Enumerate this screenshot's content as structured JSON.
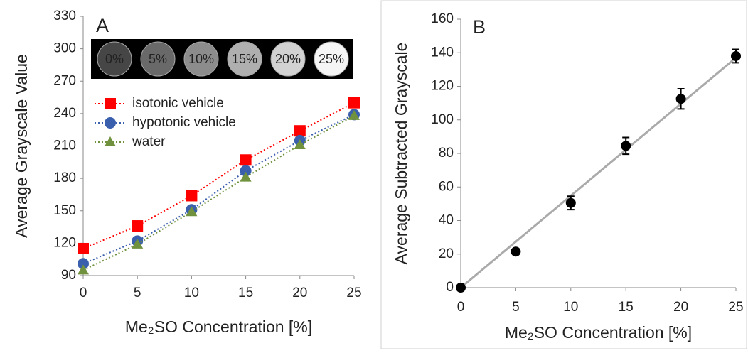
{
  "chart_data": [
    {
      "type": "line",
      "label": "A",
      "ylabel": "Average Grayscale Value",
      "xlabel": "Me₂SO Concentration [%]",
      "inset_labels": [
        "0%",
        "5%",
        "10%",
        "15%",
        "20%",
        "25%"
      ],
      "x": [
        0,
        5,
        10,
        15,
        20,
        25
      ],
      "series": [
        {
          "name": "isotonic vehicle",
          "color": "#ff0000",
          "marker": "square",
          "values": [
            115,
            136,
            164,
            197,
            224,
            250
          ]
        },
        {
          "name": "hypotonic vehicle",
          "color": "#3a5fad",
          "marker": "circle",
          "values": [
            101,
            122,
            151,
            187,
            215,
            239
          ]
        },
        {
          "name": "water",
          "color": "#70913e",
          "marker": "triangle",
          "values": [
            95,
            119,
            149,
            181,
            211,
            238
          ]
        }
      ],
      "xlim": [
        0,
        25
      ],
      "xticks": [
        0,
        5,
        10,
        15,
        20,
        25
      ],
      "ylim": [
        90,
        330
      ],
      "yticks": [
        90,
        120,
        150,
        180,
        210,
        240,
        270,
        300,
        330
      ]
    },
    {
      "type": "scatter",
      "label": "B",
      "ylabel": "Average Subtracted Grayscale",
      "xlabel": "Me₂SO Concentration [%]",
      "x": [
        0,
        5,
        10,
        15,
        20,
        25
      ],
      "values": [
        0,
        21.5,
        50.5,
        84.5,
        112.5,
        138
      ],
      "errors": [
        0,
        0,
        4,
        5,
        6,
        4
      ],
      "color": "#000000",
      "trendline": {
        "color": "#aaaaaa",
        "x": [
          0,
          25
        ],
        "values": [
          0,
          137
        ]
      },
      "xlim": [
        0,
        25
      ],
      "xticks": [
        0,
        5,
        10,
        15,
        20,
        25
      ],
      "ylim": [
        0,
        160
      ],
      "yticks": [
        0,
        20,
        40,
        60,
        80,
        100,
        120,
        140,
        160
      ]
    }
  ]
}
